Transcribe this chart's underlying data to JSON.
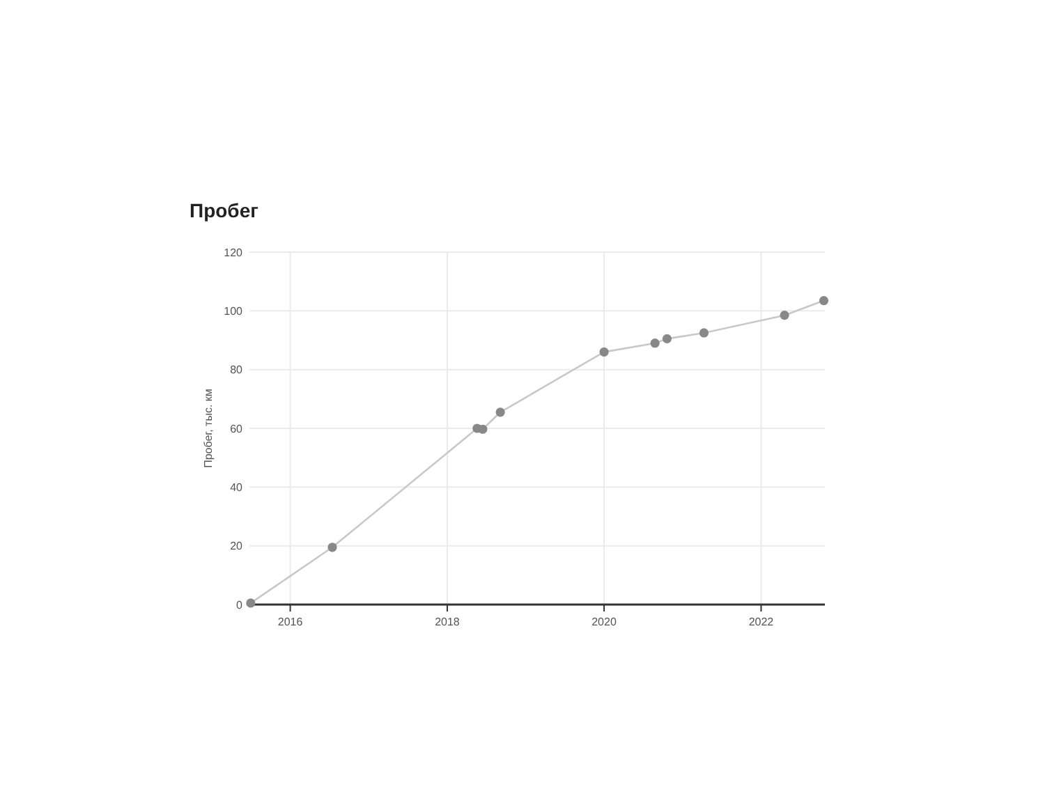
{
  "chart_data": {
    "type": "line",
    "title": "Пробег",
    "ylabel": "Пробег, тыс. км",
    "x": [
      "2015-07-01",
      "2016-07-15",
      "2018-05-20",
      "2018-06-15",
      "2018-09-05",
      "2020-01-01",
      "2020-08-25",
      "2020-10-20",
      "2021-04-10",
      "2022-04-20",
      "2022-10-20"
    ],
    "series": [
      {
        "color": "#888888",
        "values": [
          0.5,
          19.5,
          60,
          59.7,
          65.5,
          86,
          89,
          90.5,
          92.5,
          98.5,
          103.5
        ]
      }
    ],
    "xlim": [
      "2015-06-25",
      "2022-10-25"
    ],
    "xticks": [
      "2016",
      "2018",
      "2020",
      "2022"
    ],
    "ylim": [
      0,
      120
    ],
    "yticks": [
      0,
      20,
      40,
      60,
      80,
      100,
      120
    ],
    "grid": true,
    "marker": "circle",
    "line_style": "solid"
  }
}
